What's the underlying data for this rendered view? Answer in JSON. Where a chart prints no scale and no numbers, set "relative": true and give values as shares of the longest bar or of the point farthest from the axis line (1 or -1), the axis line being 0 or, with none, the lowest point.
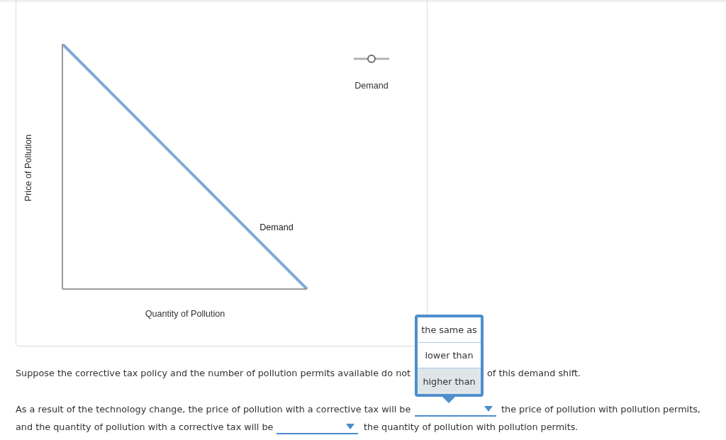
{
  "chart_data": {
    "type": "line",
    "xlabel": "Quantity of Pollution",
    "ylabel": "Price of Pollution",
    "relative": true,
    "categories": [
      null,
      null
    ],
    "series": [
      {
        "name": "Demand",
        "color": "#80a9d6",
        "values": [
          1,
          0
        ]
      }
    ],
    "annotations": [
      "Demand",
      "Suppose the corrective tax policy and the number of pollution permits available do not",
      "the same as",
      "lower than",
      "higher than",
      "of this demand shift.",
      "As a result of the technology change, the price of pollution with a corrective tax will be",
      "the price of pollution with pollution permits,",
      "and the quantity of pollution with a corrective tax will be",
      "the quantity of pollution with pollution permits."
    ]
  }
}
